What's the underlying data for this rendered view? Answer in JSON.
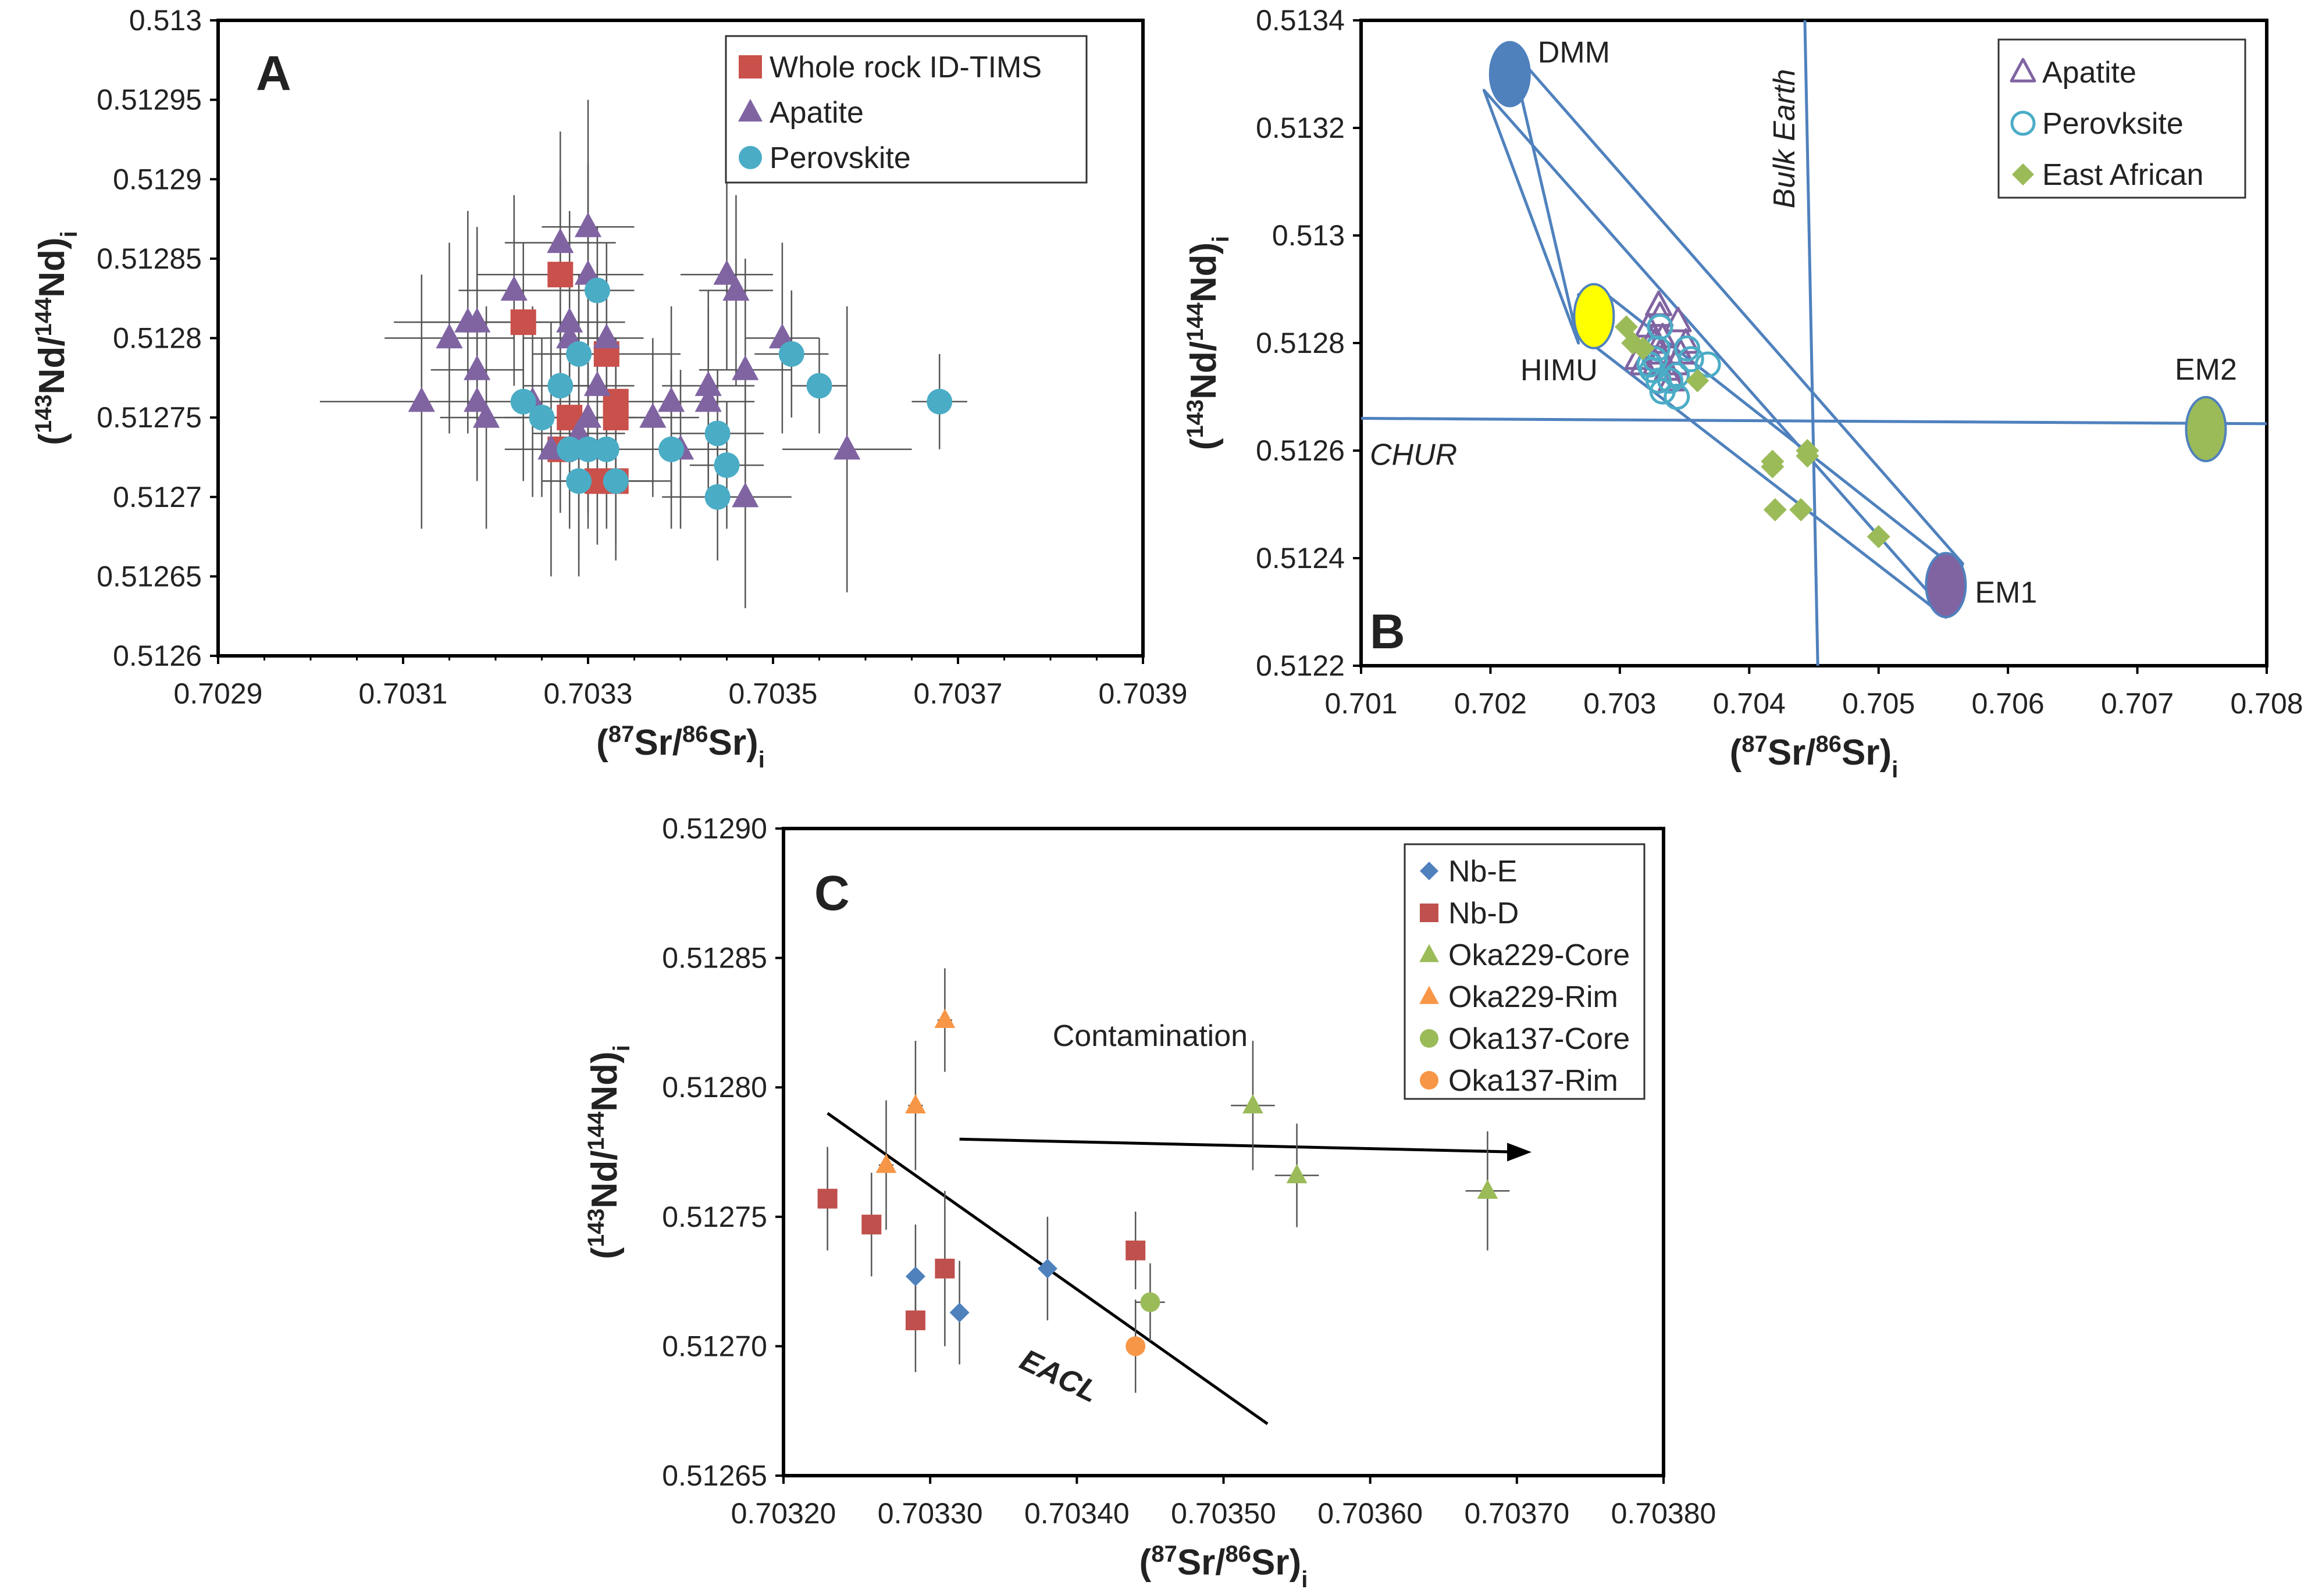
{
  "chart_data": [
    {
      "type": "scatter",
      "panel": "A",
      "xlabel_iso": "87",
      "xlabel_el": "Sr",
      "xlabel_iso2": "86",
      "xlabel_el2": "Sr",
      "ylabel_iso": "143",
      "ylabel_el": "Nd",
      "ylabel_iso2": "144",
      "ylabel_el2": "Nd",
      "subscript": "i",
      "xlim": [
        0.7029,
        0.7039
      ],
      "ylim": [
        0.5126,
        0.513
      ],
      "xticks": [
        "0.7029",
        "0.7031",
        "0.7033",
        "0.7035",
        "0.7037",
        "0.7039"
      ],
      "yticks": [
        "0.5126",
        "0.51265",
        "0.5127",
        "0.51275",
        "0.5128",
        "0.51285",
        "0.5129",
        "0.51295",
        "0.513"
      ],
      "legend_position": "top-right",
      "series": [
        {
          "name": "Whole rock ID-TIMS",
          "marker": "square",
          "color": "#c9504b",
          "points": [
            [
              0.70327,
              0.51284,
              9e-05,
              6e-05
            ],
            [
              0.70323,
              0.51281,
              8e-05,
              5e-05
            ],
            [
              0.70332,
              0.51279,
              8e-05,
              5e-05
            ],
            [
              0.70333,
              0.51276,
              6e-05,
              4e-05
            ],
            [
              0.70333,
              0.51275,
              6e-05,
              4e-05
            ],
            [
              0.70328,
              0.51275,
              6e-05,
              4e-05
            ],
            [
              0.70327,
              0.51273,
              6e-05,
              4e-05
            ],
            [
              0.70333,
              0.51271,
              6e-05,
              4e-05
            ],
            [
              0.70331,
              0.51271,
              6e-05,
              4e-05
            ]
          ]
        },
        {
          "name": "Apatite",
          "marker": "triangle",
          "color": "#8064a2",
          "points": [
            [
              0.70312,
              0.51276,
              0.00011,
              8e-05
            ],
            [
              0.70315,
              0.5128,
              7e-05,
              6e-05
            ],
            [
              0.70317,
              0.51281,
              8e-05,
              7e-05
            ],
            [
              0.70318,
              0.51281,
              6e-05,
              6e-05
            ],
            [
              0.70318,
              0.51278,
              5e-05,
              6e-05
            ],
            [
              0.70318,
              0.51276,
              4e-05,
              5e-05
            ],
            [
              0.70319,
              0.51275,
              5e-05,
              7e-05
            ],
            [
              0.70322,
              0.51283,
              6e-05,
              6e-05
            ],
            [
              0.70324,
              0.51276,
              5e-05,
              6e-05
            ],
            [
              0.70326,
              0.51273,
              5e-05,
              8e-05
            ],
            [
              0.70327,
              0.51286,
              6e-05,
              7e-05
            ],
            [
              0.70328,
              0.51281,
              6e-05,
              7e-05
            ],
            [
              0.70328,
              0.5128,
              5e-05,
              6e-05
            ],
            [
              0.70329,
              0.51274,
              5e-05,
              9e-05
            ],
            [
              0.7033,
              0.51287,
              5e-05,
              8e-05
            ],
            [
              0.7033,
              0.51284,
              5e-05,
              7e-05
            ],
            [
              0.70331,
              0.51277,
              4e-05,
              6e-05
            ],
            [
              0.70332,
              0.5128,
              4e-05,
              6e-05
            ],
            [
              0.7033,
              0.51275,
              5e-05,
              6e-05
            ],
            [
              0.70337,
              0.51275,
              5e-05,
              5e-05
            ],
            [
              0.70339,
              0.51276,
              5e-05,
              6e-05
            ],
            [
              0.7034,
              0.51273,
              5e-05,
              5e-05
            ],
            [
              0.70343,
              0.51276,
              5e-05,
              6e-05
            ],
            [
              0.70343,
              0.51277,
              5e-05,
              6e-05
            ],
            [
              0.70345,
              0.51284,
              5e-05,
              6e-05
            ],
            [
              0.70346,
              0.51283,
              4e-05,
              6e-05
            ],
            [
              0.70347,
              0.51278,
              5e-05,
              7e-05
            ],
            [
              0.70347,
              0.5127,
              5e-05,
              7e-05
            ],
            [
              0.70351,
              0.5128,
              4e-05,
              6e-05
            ],
            [
              0.70358,
              0.51273,
              7e-05,
              9e-05
            ]
          ]
        },
        {
          "name": "Perovskite",
          "marker": "circle",
          "color": "#4bacc6",
          "points": [
            [
              0.70323,
              0.51276,
              4e-05,
              5e-05
            ],
            [
              0.70325,
              0.51275,
              4e-05,
              5e-05
            ],
            [
              0.70327,
              0.51277,
              4e-05,
              5e-05
            ],
            [
              0.70329,
              0.51279,
              4e-05,
              5e-05
            ],
            [
              0.70331,
              0.51283,
              4e-05,
              4e-05
            ],
            [
              0.70328,
              0.51273,
              4e-05,
              5e-05
            ],
            [
              0.7033,
              0.51273,
              4e-05,
              5e-05
            ],
            [
              0.70332,
              0.51273,
              4e-05,
              5e-05
            ],
            [
              0.70329,
              0.51271,
              4e-05,
              5e-05
            ],
            [
              0.70333,
              0.51271,
              4e-05,
              5e-05
            ],
            [
              0.70339,
              0.51273,
              5e-05,
              5e-05
            ],
            [
              0.70344,
              0.51274,
              5e-05,
              4e-05
            ],
            [
              0.70345,
              0.51272,
              4e-05,
              4e-05
            ],
            [
              0.70344,
              0.5127,
              6e-05,
              4e-05
            ],
            [
              0.70352,
              0.51279,
              4e-05,
              4e-05
            ],
            [
              0.70355,
              0.51277,
              3e-05,
              3e-05
            ],
            [
              0.70368,
              0.51276,
              3e-05,
              3e-05
            ]
          ]
        }
      ]
    },
    {
      "type": "scatter",
      "panel": "B",
      "xlabel_iso": "87",
      "xlabel_el": "Sr",
      "xlabel_iso2": "86",
      "xlabel_el2": "Sr",
      "ylabel_iso": "143",
      "ylabel_el": "Nd",
      "ylabel_iso2": "144",
      "ylabel_el2": "Nd",
      "subscript": "i",
      "xlim": [
        0.701,
        0.708
      ],
      "ylim": [
        0.5122,
        0.5134
      ],
      "xticks": [
        "0.701",
        "0.702",
        "0.703",
        "0.704",
        "0.705",
        "0.706",
        "0.707",
        "0.708"
      ],
      "yticks": [
        "0.5122",
        "0.5124",
        "0.5126",
        "0.5128",
        "0.513",
        "0.5132",
        "0.5134"
      ],
      "legend_position": "top-right",
      "reference_lines": [
        {
          "name": "Bulk Earth",
          "points": [
            [
              0.70443,
              0.5134
            ],
            [
              0.70453,
              0.5122
            ]
          ]
        },
        {
          "name": "CHUR",
          "points": [
            [
              0.701,
              0.51266
            ],
            [
              0.708,
              0.51265
            ]
          ]
        }
      ],
      "reservoirs": [
        {
          "name": "DMM",
          "x": 0.70215,
          "y": 0.5133,
          "color": "#4f81bd"
        },
        {
          "name": "HIMU",
          "x": 0.7028,
          "y": 0.51285,
          "color": "#ffff00"
        },
        {
          "name": "EM1",
          "x": 0.70552,
          "y": 0.51235,
          "color": "#8064a2"
        },
        {
          "name": "EM2",
          "x": 0.70753,
          "y": 0.51264,
          "color": "#9bbb59"
        }
      ],
      "outlines": [
        [
          [
            0.70215,
            0.51335
          ],
          [
            0.70565,
            0.51239
          ],
          [
            0.70552,
            0.5123
          ],
          [
            0.70195,
            0.51327
          ],
          [
            0.70268,
            0.5128
          ]
        ],
        [
          [
            0.70268,
            0.51289
          ],
          [
            0.7029,
            0.51289
          ],
          [
            0.7056,
            0.51238
          ],
          [
            0.70552,
            0.51229
          ],
          [
            0.70272,
            0.51281
          ]
        ]
      ],
      "series": [
        {
          "name": "Apatite",
          "marker": "triangle-open",
          "color": "#8064a2",
          "points": [
            [
              0.70314,
              0.51277
            ],
            [
              0.70318,
              0.51276
            ],
            [
              0.70322,
              0.51283
            ],
            [
              0.70326,
              0.51281
            ],
            [
              0.70327,
              0.5128
            ],
            [
              0.70328,
              0.51276
            ],
            [
              0.7033,
              0.51287
            ],
            [
              0.70331,
              0.51285
            ],
            [
              0.70331,
              0.51278
            ],
            [
              0.70333,
              0.51281
            ],
            [
              0.70337,
              0.51275
            ],
            [
              0.7034,
              0.51273
            ],
            [
              0.70343,
              0.51276
            ],
            [
              0.70345,
              0.51284
            ],
            [
              0.70347,
              0.51278
            ],
            [
              0.70351,
              0.5128
            ]
          ]
        },
        {
          "name": "Perovksite",
          "marker": "circle-open",
          "color": "#4bacc6",
          "points": [
            [
              0.70323,
              0.51276
            ],
            [
              0.70325,
              0.51275
            ],
            [
              0.70327,
              0.51277
            ],
            [
              0.70329,
              0.51279
            ],
            [
              0.70331,
              0.51283
            ],
            [
              0.7033,
              0.51273
            ],
            [
              0.70333,
              0.51271
            ],
            [
              0.70339,
              0.51273
            ],
            [
              0.70344,
              0.51274
            ],
            [
              0.70344,
              0.5127
            ],
            [
              0.70352,
              0.51279
            ],
            [
              0.70355,
              0.51277
            ],
            [
              0.70368,
              0.51276
            ]
          ]
        },
        {
          "name": "East African",
          "marker": "diamond",
          "color": "#9bbb59",
          "points": [
            [
              0.70305,
              0.51283
            ],
            [
              0.7031,
              0.5128
            ],
            [
              0.70318,
              0.51279
            ],
            [
              0.7036,
              0.51273
            ],
            [
              0.70418,
              0.51257
            ],
            [
              0.70418,
              0.51258
            ],
            [
              0.70445,
              0.51259
            ],
            [
              0.70445,
              0.5126
            ],
            [
              0.7042,
              0.51249
            ],
            [
              0.7044,
              0.51249
            ],
            [
              0.705,
              0.51244
            ]
          ]
        }
      ]
    },
    {
      "type": "scatter",
      "panel": "C",
      "xlabel_iso": "87",
      "xlabel_el": "Sr",
      "xlabel_iso2": "86",
      "xlabel_el2": "Sr",
      "ylabel_iso": "143",
      "ylabel_el": "Nd",
      "ylabel_iso2": "144",
      "ylabel_el2": "Nd",
      "subscript": "i",
      "xlim": [
        0.7032,
        0.7038
      ],
      "ylim": [
        0.51265,
        0.5129
      ],
      "xticks": [
        "0.70320",
        "0.70330",
        "0.70340",
        "0.70350",
        "0.70360",
        "0.70370",
        "0.70380"
      ],
      "yticks": [
        "0.51265",
        "0.51270",
        "0.51275",
        "0.51280",
        "0.51285",
        "0.51290"
      ],
      "legend_position": "top-right",
      "eacl_line": {
        "label": "EACL",
        "points": [
          [
            0.70323,
            0.51279
          ],
          [
            0.70353,
            0.51267
          ]
        ]
      },
      "contamination_arrow": {
        "label": "Contamination",
        "points": [
          [
            0.70332,
            0.51278
          ],
          [
            0.70371,
            0.512775
          ]
        ]
      },
      "series": [
        {
          "name": "Nb-E",
          "marker": "diamond",
          "color": "#4f81bd",
          "points": [
            [
              0.70329,
              0.512727,
              0,
              2e-05
            ],
            [
              0.70332,
              0.512713,
              0,
              2e-05
            ],
            [
              0.70338,
              0.51273,
              0,
              2e-05
            ]
          ]
        },
        {
          "name": "Nb-D",
          "marker": "square",
          "color": "#c0504d",
          "points": [
            [
              0.70323,
              0.512757,
              0,
              2e-05
            ],
            [
              0.70326,
              0.512747,
              0,
              2e-05
            ],
            [
              0.70329,
              0.51271,
              0,
              2e-05
            ],
            [
              0.70331,
              0.51273,
              0,
              3e-05
            ],
            [
              0.70344,
              0.512737,
              0,
              1.5e-05
            ]
          ]
        },
        {
          "name": "Oka229-Core",
          "marker": "triangle",
          "color": "#9bbb59",
          "points": [
            [
              0.70352,
              0.512793,
              1.5e-05,
              2.5e-05
            ],
            [
              0.70355,
              0.512766,
              1.5e-05,
              2e-05
            ],
            [
              0.70368,
              0.51276,
              1.5e-05,
              2.3e-05
            ]
          ]
        },
        {
          "name": "Oka229-Rim",
          "marker": "triangle",
          "color": "#f79646",
          "points": [
            [
              0.70327,
              0.51277,
              5e-06,
              2.5e-05
            ],
            [
              0.70329,
              0.512793,
              5e-06,
              2.5e-05
            ],
            [
              0.70331,
              0.512826,
              5e-06,
              2e-05
            ]
          ]
        },
        {
          "name": "Oka137-Core",
          "marker": "circle",
          "color": "#9bbb59",
          "points": [
            [
              0.70345,
              0.512717,
              1e-05,
              1.5e-05
            ]
          ]
        },
        {
          "name": "Oka137-Rim",
          "marker": "circle",
          "color": "#f79646",
          "points": [
            [
              0.70344,
              0.5127,
              0,
              1.8e-05
            ]
          ]
        }
      ]
    }
  ]
}
